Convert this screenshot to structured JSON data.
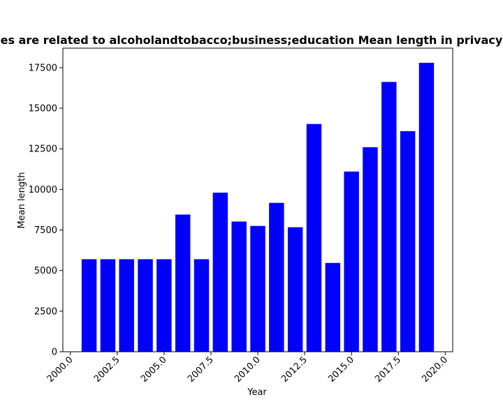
{
  "chart_data": {
    "type": "bar",
    "title": "es are related to alcoholandtobacco;business;education Mean length in privacy",
    "xlabel": "Year",
    "ylabel": "Mean length",
    "x": [
      2001,
      2002,
      2003,
      2004,
      2005,
      2006,
      2007,
      2008,
      2009,
      2010,
      2011,
      2012,
      2013,
      2014,
      2015,
      2016,
      2017,
      2018,
      2019
    ],
    "values": [
      5700,
      5700,
      5700,
      5700,
      5700,
      8450,
      5700,
      9800,
      8020,
      7750,
      9170,
      7670,
      14030,
      5470,
      11100,
      12600,
      16620,
      13590,
      17800
    ],
    "xlim": [
      1999.6,
      2020.4
    ],
    "ylim": [
      0,
      18700
    ],
    "xticks": [
      2000.0,
      2002.5,
      2005.0,
      2007.5,
      2010.0,
      2012.5,
      2015.0,
      2017.5,
      2020.0
    ],
    "xtick_labels": [
      "2000.0",
      "2002.5",
      "2005.0",
      "2007.5",
      "2010.0",
      "2012.5",
      "2015.0",
      "2017.5",
      "2020.0"
    ],
    "yticks": [
      0,
      2500,
      5000,
      7500,
      10000,
      12500,
      15000,
      17500
    ],
    "ytick_labels": [
      "0",
      "2500",
      "5000",
      "7500",
      "10000",
      "12500",
      "15000",
      "17500"
    ],
    "bar_color": "#0000ff",
    "grid": false,
    "legend": "none"
  }
}
